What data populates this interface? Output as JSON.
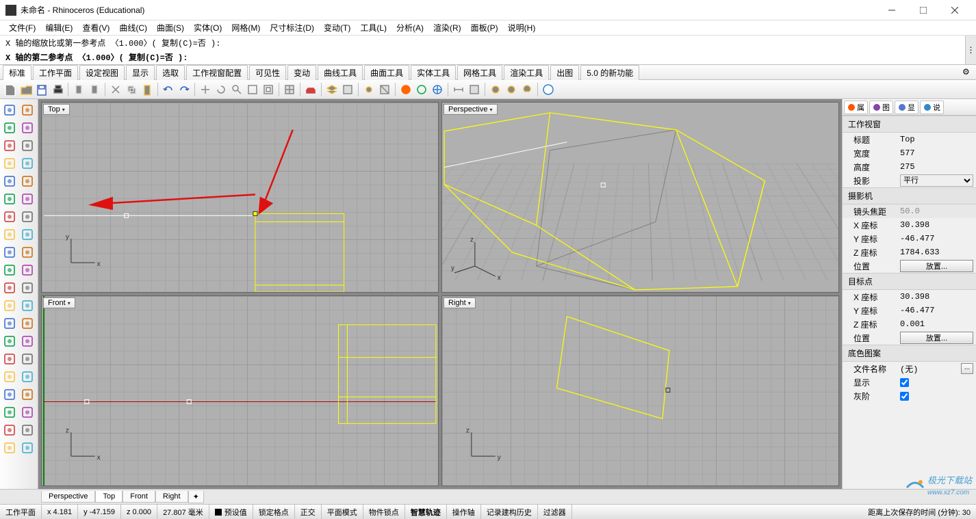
{
  "window": {
    "title": "未命名 - Rhinoceros (Educational)"
  },
  "menus": [
    "文件(F)",
    "编辑(E)",
    "查看(V)",
    "曲线(C)",
    "曲面(S)",
    "实体(O)",
    "网格(M)",
    "尺寸标注(D)",
    "变动(T)",
    "工具(L)",
    "分析(A)",
    "渲染(R)",
    "面板(P)",
    "说明(H)"
  ],
  "cmd": {
    "line1": "X 轴的缩放比或第一参考点 〈1.000〉( 复制(C)=否 ):",
    "line2": "X 轴的第二参考点 〈1.000〉( 复制(C)=否 ):"
  },
  "tabs": [
    "标准",
    "工作平面",
    "设定视图",
    "显示",
    "选取",
    "工作视窗配置",
    "可见性",
    "变动",
    "曲线工具",
    "曲面工具",
    "实体工具",
    "网格工具",
    "渲染工具",
    "出图",
    "5.0 的新功能"
  ],
  "viewports": {
    "topleft": "Top",
    "topright": "Perspective",
    "bottomleft": "Front",
    "bottomright": "Right"
  },
  "vptabs": [
    "Perspective",
    "Top",
    "Front",
    "Right"
  ],
  "vptabs_active": 1,
  "status": {
    "plane": "工作平面",
    "x": "x 4.181",
    "y": "y -47.159",
    "z": "z 0.000",
    "mm": "27.807 毫米",
    "preset": "预设值",
    "items": [
      "锁定格点",
      "正交",
      "平面模式",
      "物件锁点",
      "智慧轨迹",
      "操作轴",
      "记录建构历史",
      "过滤器"
    ],
    "items_bold": 4,
    "savetime": "距离上次保存的时间 (分钟): 30"
  },
  "panel": {
    "tabs": [
      {
        "label": "属",
        "color": "#ff5500"
      },
      {
        "label": "图",
        "color": "#8844aa"
      },
      {
        "label": "显",
        "color": "#5577cc"
      },
      {
        "label": "说",
        "color": "#3388cc"
      }
    ],
    "viewport_h": "工作视窗",
    "title_lbl": "标题",
    "title_val": "Top",
    "width_lbl": "宽度",
    "width_val": "577",
    "height_lbl": "高度",
    "height_val": "275",
    "proj_lbl": "投影",
    "proj_val": "平行",
    "camera_h": "摄影机",
    "lens_lbl": "镜头焦距",
    "lens_val": "50.0",
    "x_lbl": "X 座标",
    "cam_x": "30.398",
    "y_lbl": "Y 座标",
    "cam_y": "-46.477",
    "z_lbl": "Z 座标",
    "cam_z": "1784.633",
    "pos_lbl": "位置",
    "pos_btn": "放置...",
    "target_h": "目标点",
    "tgt_x": "30.398",
    "tgt_y": "-46.477",
    "tgt_z": "0.001",
    "wallpaper_h": "底色图案",
    "file_lbl": "文件名称",
    "file_val": "(无)",
    "show_lbl": "显示",
    "gray_lbl": "灰阶"
  },
  "watermark": "极光下载站",
  "watermark_url": "www.xz7.com",
  "colors": {
    "wireframe": "#ffff00",
    "arrow": "#e01010",
    "viewport_bg": "#b0b0b0",
    "axis_red": "#b00000",
    "axis_green": "#008000",
    "axis_dark": "#303030"
  }
}
